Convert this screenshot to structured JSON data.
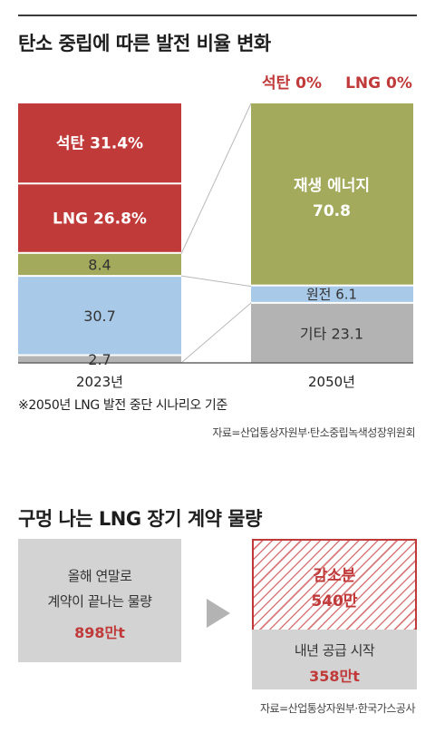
{
  "section1": {
    "title": "탄소 중립에 따른 발전 비율 변화",
    "note": "※2050년 LNG 발전 중단 시나리오 기준",
    "source": "자료=산업통상자원부·탄소중립녹색성장위원회"
  },
  "chart_data": {
    "type": "bar",
    "categories": [
      "2023년",
      "2050년"
    ],
    "series": [
      {
        "name": "석탄",
        "values": [
          31.4,
          0
        ]
      },
      {
        "name": "LNG",
        "values": [
          26.8,
          0
        ]
      },
      {
        "name": "재생 에너지",
        "values": [
          8.4,
          70.8
        ]
      },
      {
        "name": "원전",
        "values": [
          30.7,
          6.1
        ]
      },
      {
        "name": "기타",
        "values": [
          2.7,
          23.1
        ]
      }
    ],
    "labels_2023": [
      "석탄  31.4%",
      "LNG  26.8%",
      "8.4",
      "30.7",
      "2.7"
    ],
    "labels_2050": [
      "재생 에너지",
      "70.8",
      "원전  6.1",
      "기타  23.1"
    ],
    "zero_labels": [
      "석탄 0%",
      "LNG 0%"
    ],
    "colors": [
      "#c03a3a",
      "#c03a3a",
      "#a3aa5c",
      "#a8cae8",
      "#b3b3b3"
    ],
    "stacked": true,
    "ylim": [
      0,
      100
    ]
  },
  "section2": {
    "title": "구멍 나는 LNG 장기 계약 물량",
    "left_line1": "올해 연말로",
    "left_line2": "계약이 끝나는 물량",
    "left_value": "898만t",
    "reduction_label": "감소분",
    "reduction_value": "540만",
    "supply_label": "내년 공급 시작",
    "supply_value": "358만t",
    "source": "자료=산업통상자원부·한국가스공사"
  }
}
